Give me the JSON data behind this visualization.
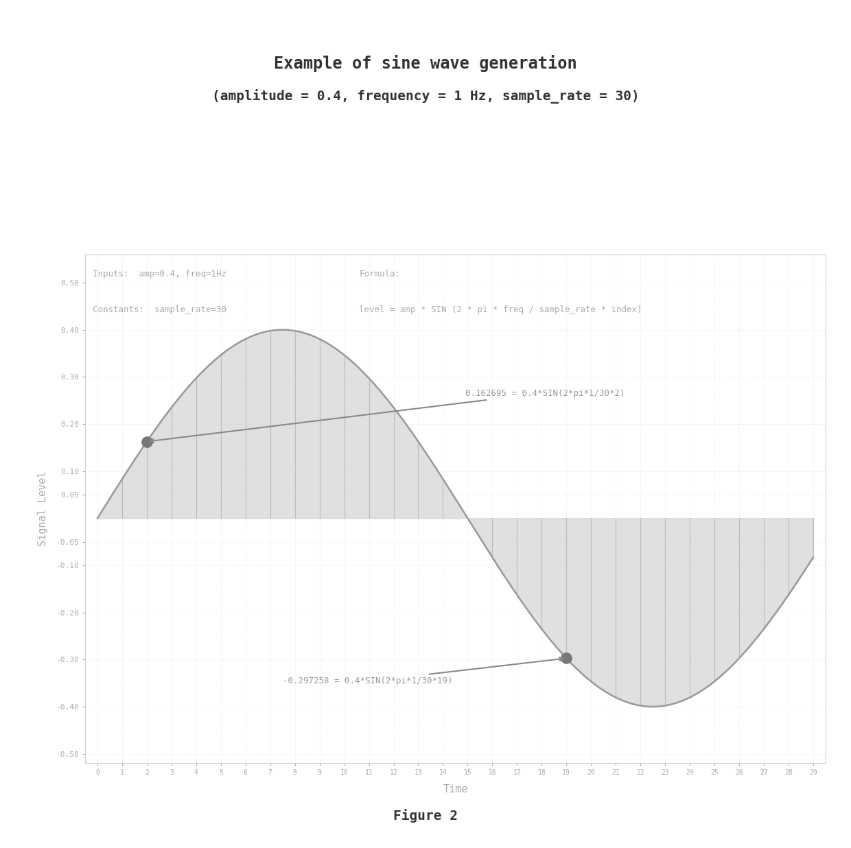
{
  "title_line1": "Example of sine wave generation",
  "title_line2": "(amplitude = 0.4, frequency = 1 Hz, sample_rate = 30)",
  "amplitude": 0.4,
  "frequency": 1,
  "sample_rate": 30,
  "n_samples": 30,
  "ylim": [
    -0.52,
    0.56
  ],
  "xlim": [
    -0.5,
    29.5
  ],
  "yticks": [
    0.5,
    0.4,
    0.3,
    0.2,
    0.1,
    0.05,
    -0.05,
    -0.1,
    -0.2,
    -0.3,
    -0.4,
    -0.5
  ],
  "ylabel": "Signal Level",
  "xlabel": "Time",
  "annotation1_index": 2,
  "annotation1_text": "0.162695 = 0.4*SIN(2*pi*1/30*2)",
  "annotation2_index": 19,
  "annotation2_text": "-0.297258 = 0.4*SIN(2*pi*1/30*19)",
  "input_text1": "Inputs:  amp=0.4, freq=1Hz",
  "input_text2": "Constants:  sample_rate=30",
  "formula_text1": "Formula:",
  "formula_text2": "level = amp * SIN (2 * pi * freq / sample_rate * index)",
  "figure_label": "Figure 2",
  "line_color": "#999999",
  "fill_color": "#cccccc",
  "point_color": "#777777",
  "vline_color": "#bbbbbb",
  "arrow_color": "#888888",
  "annotation_color": "#999999",
  "background_color": "#ffffff",
  "grid_color": "#dddddd",
  "text_color": "#aaaaaa",
  "label_color": "#aaaaaa",
  "title_color": "#333333"
}
